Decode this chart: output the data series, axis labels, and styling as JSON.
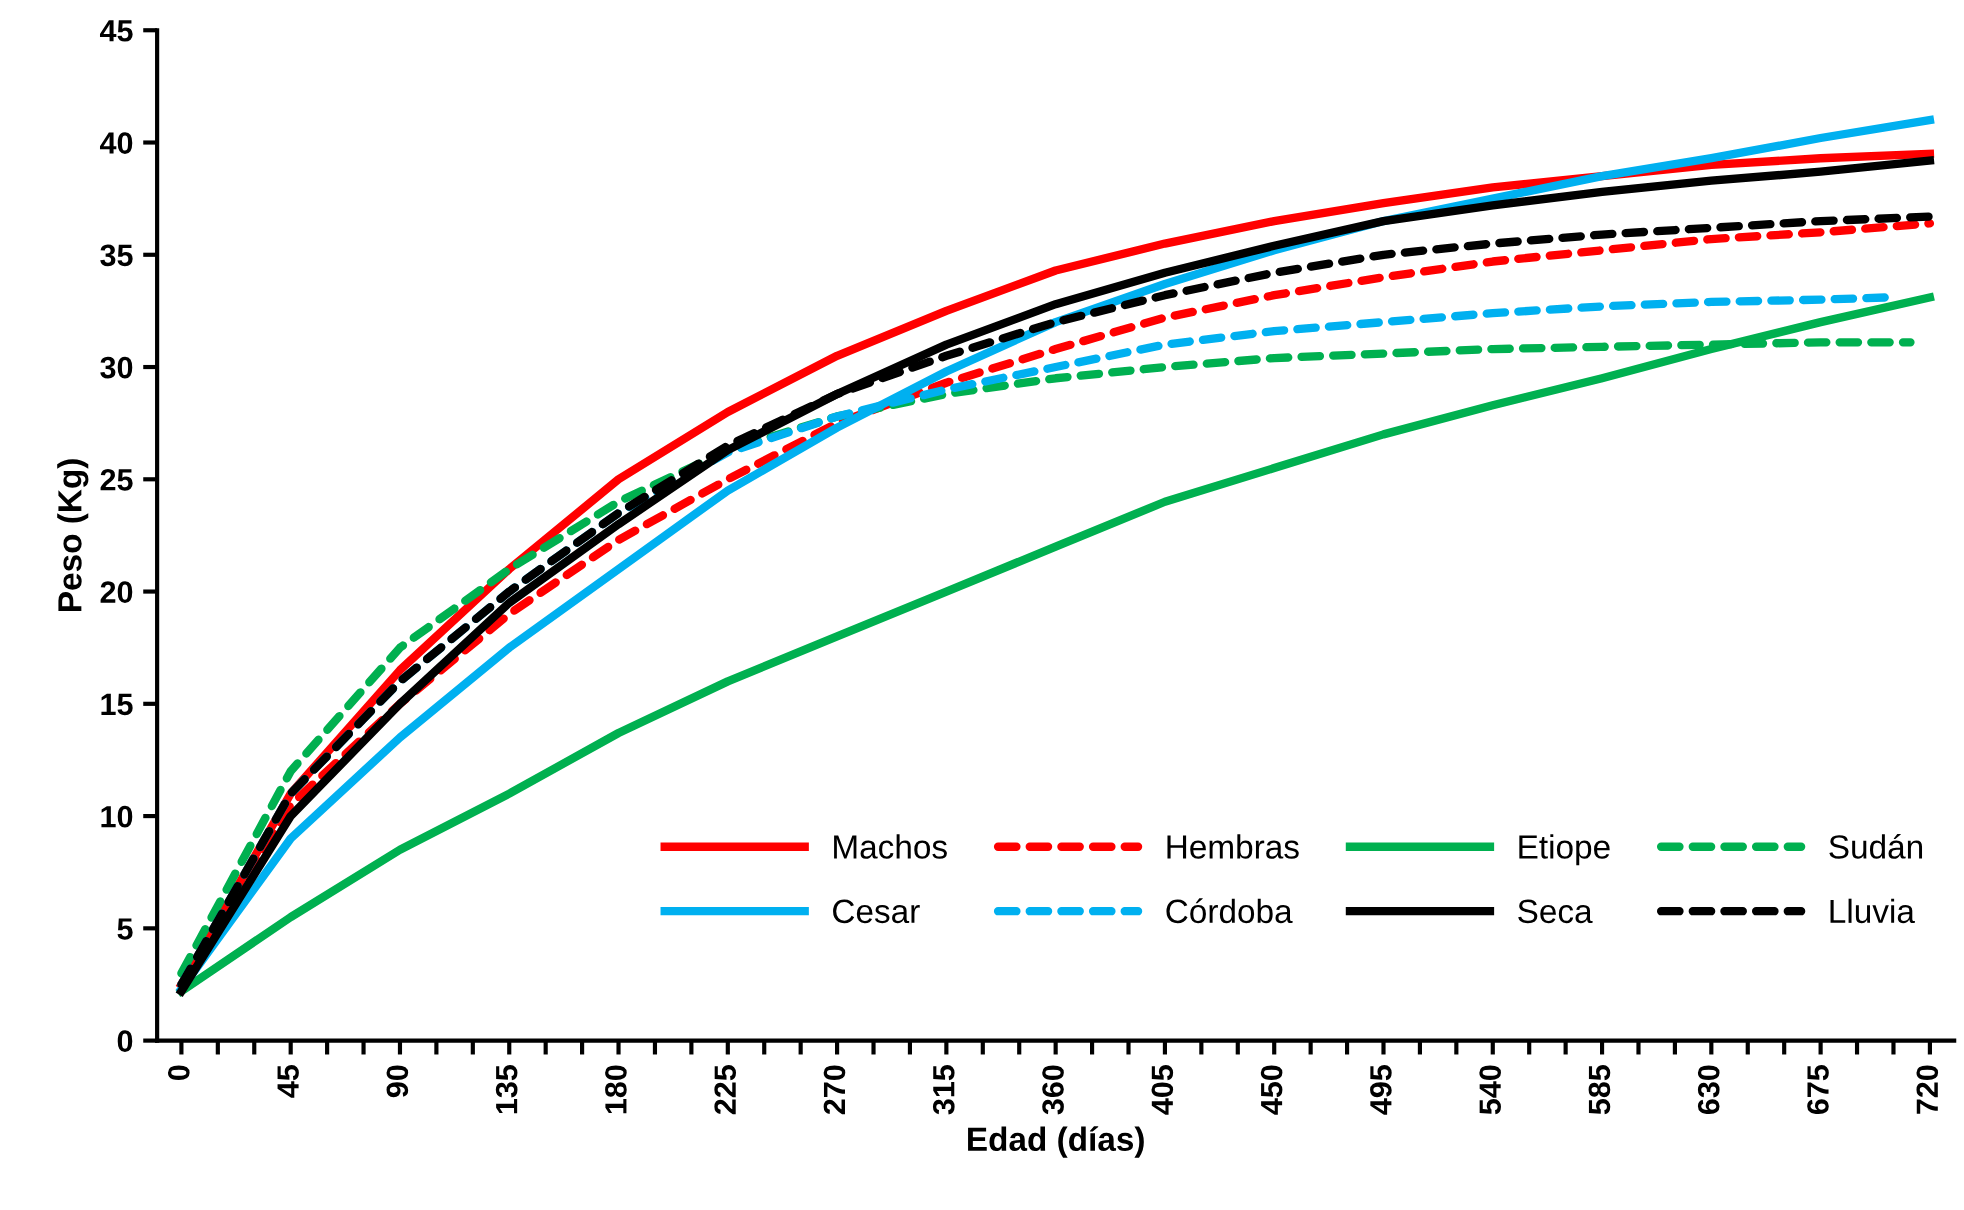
{
  "chart_data": {
    "type": "line",
    "xlabel": "Edad (días)",
    "ylabel": "Peso (Kg)",
    "xlim": [
      -10,
      730
    ],
    "ylim": [
      0,
      45
    ],
    "xticks": [
      0,
      {
        "value": 15,
        "label": null
      },
      {
        "value": 30,
        "label": null
      },
      45,
      {
        "value": 60,
        "label": null
      },
      {
        "value": 75,
        "label": null
      },
      90,
      {
        "value": 105,
        "label": null
      },
      {
        "value": 120,
        "label": null
      },
      135,
      {
        "value": 150,
        "label": null
      },
      {
        "value": 165,
        "label": null
      },
      180,
      {
        "value": 195,
        "label": null
      },
      {
        "value": 210,
        "label": null
      },
      225,
      {
        "value": 240,
        "label": null
      },
      {
        "value": 255,
        "label": null
      },
      270,
      {
        "value": 285,
        "label": null
      },
      {
        "value": 300,
        "label": null
      },
      315,
      {
        "value": 330,
        "label": null
      },
      {
        "value": 345,
        "label": null
      },
      360,
      {
        "value": 375,
        "label": null
      },
      {
        "value": 390,
        "label": null
      },
      405,
      {
        "value": 420,
        "label": null
      },
      {
        "value": 435,
        "label": null
      },
      450,
      {
        "value": 465,
        "label": null
      },
      {
        "value": 480,
        "label": null
      },
      495,
      {
        "value": 510,
        "label": null
      },
      {
        "value": 525,
        "label": null
      },
      540,
      {
        "value": 555,
        "label": null
      },
      {
        "value": 570,
        "label": null
      },
      585,
      {
        "value": 600,
        "label": null
      },
      {
        "value": 615,
        "label": null
      },
      630,
      {
        "value": 645,
        "label": null
      },
      {
        "value": 660,
        "label": null
      },
      675,
      {
        "value": 690,
        "label": null
      },
      {
        "value": 705,
        "label": null
      },
      720
    ],
    "yticks": [
      0,
      5,
      10,
      15,
      20,
      25,
      30,
      35,
      40,
      45
    ],
    "grid": false,
    "legend": "bottom right",
    "marker": "none",
    "x": [
      0,
      45,
      90,
      135,
      180,
      225,
      270,
      315,
      360,
      405,
      450,
      495,
      540,
      585,
      630,
      675,
      720
    ],
    "series": [
      {
        "name": "Machos",
        "color": "#ff0000",
        "line_style": "solid",
        "values": [
          2.5,
          11,
          16.5,
          21,
          25,
          28,
          30.5,
          32.5,
          34.3,
          35.5,
          36.5,
          37.3,
          38,
          38.5,
          39,
          39.3,
          39.5
        ]
      },
      {
        "name": "Hembras",
        "color": "#ff0000",
        "line_style": "dashed",
        "values": [
          2.5,
          10.5,
          15,
          19,
          22.3,
          25,
          27.5,
          29.3,
          30.8,
          32.2,
          33.2,
          34,
          34.7,
          35.2,
          35.7,
          36,
          36.4
        ]
      },
      {
        "name": "Etiope",
        "color": "#00b050",
        "line_style": "solid",
        "values": [
          2.2,
          5.5,
          8.5,
          11,
          13.7,
          16,
          18,
          20,
          22,
          24,
          25.5,
          27,
          28.3,
          29.5,
          30.8,
          32,
          33.1
        ]
      },
      {
        "name": "Sudán",
        "color": "#00b050",
        "line_style": "dashed",
        "x": [
          0,
          45,
          90,
          135,
          180,
          225,
          270,
          315,
          360,
          405,
          450,
          495,
          540,
          585,
          630,
          675,
          712
        ],
        "values": [
          3,
          12,
          17.5,
          21,
          24,
          26.3,
          27.8,
          28.8,
          29.5,
          30,
          30.4,
          30.6,
          30.8,
          30.9,
          31,
          31.1,
          31.1
        ]
      },
      {
        "name": "Cesar",
        "color": "#00b0f0",
        "line_style": "solid",
        "values": [
          2.3,
          9,
          13.5,
          17.5,
          21,
          24.5,
          27.3,
          29.8,
          32,
          33.7,
          35.2,
          36.5,
          37.5,
          38.5,
          39.3,
          40.2,
          41
        ]
      },
      {
        "name": "Córdoba",
        "color": "#00b0f0",
        "line_style": "dashed",
        "x": [
          0,
          45,
          90,
          135,
          180,
          225,
          270,
          315,
          360,
          405,
          450,
          495,
          540,
          585,
          630,
          675,
          702
        ],
        "values": [
          2.5,
          11,
          16,
          20,
          23.5,
          26.2,
          27.8,
          29,
          30,
          31,
          31.6,
          32,
          32.4,
          32.7,
          32.9,
          33,
          33.1
        ]
      },
      {
        "name": "Seca",
        "color": "#000000",
        "line_style": "solid",
        "values": [
          2.2,
          10,
          15,
          19.5,
          23,
          26.3,
          28.8,
          31,
          32.8,
          34.2,
          35.4,
          36.5,
          37.2,
          37.8,
          38.3,
          38.7,
          39.2
        ]
      },
      {
        "name": "Lluvia",
        "color": "#000000",
        "line_style": "dashed",
        "values": [
          2.5,
          11,
          16,
          20,
          23.5,
          26.5,
          28.8,
          30.5,
          32,
          33.2,
          34.2,
          35,
          35.5,
          35.9,
          36.2,
          36.5,
          36.7
        ]
      }
    ]
  }
}
